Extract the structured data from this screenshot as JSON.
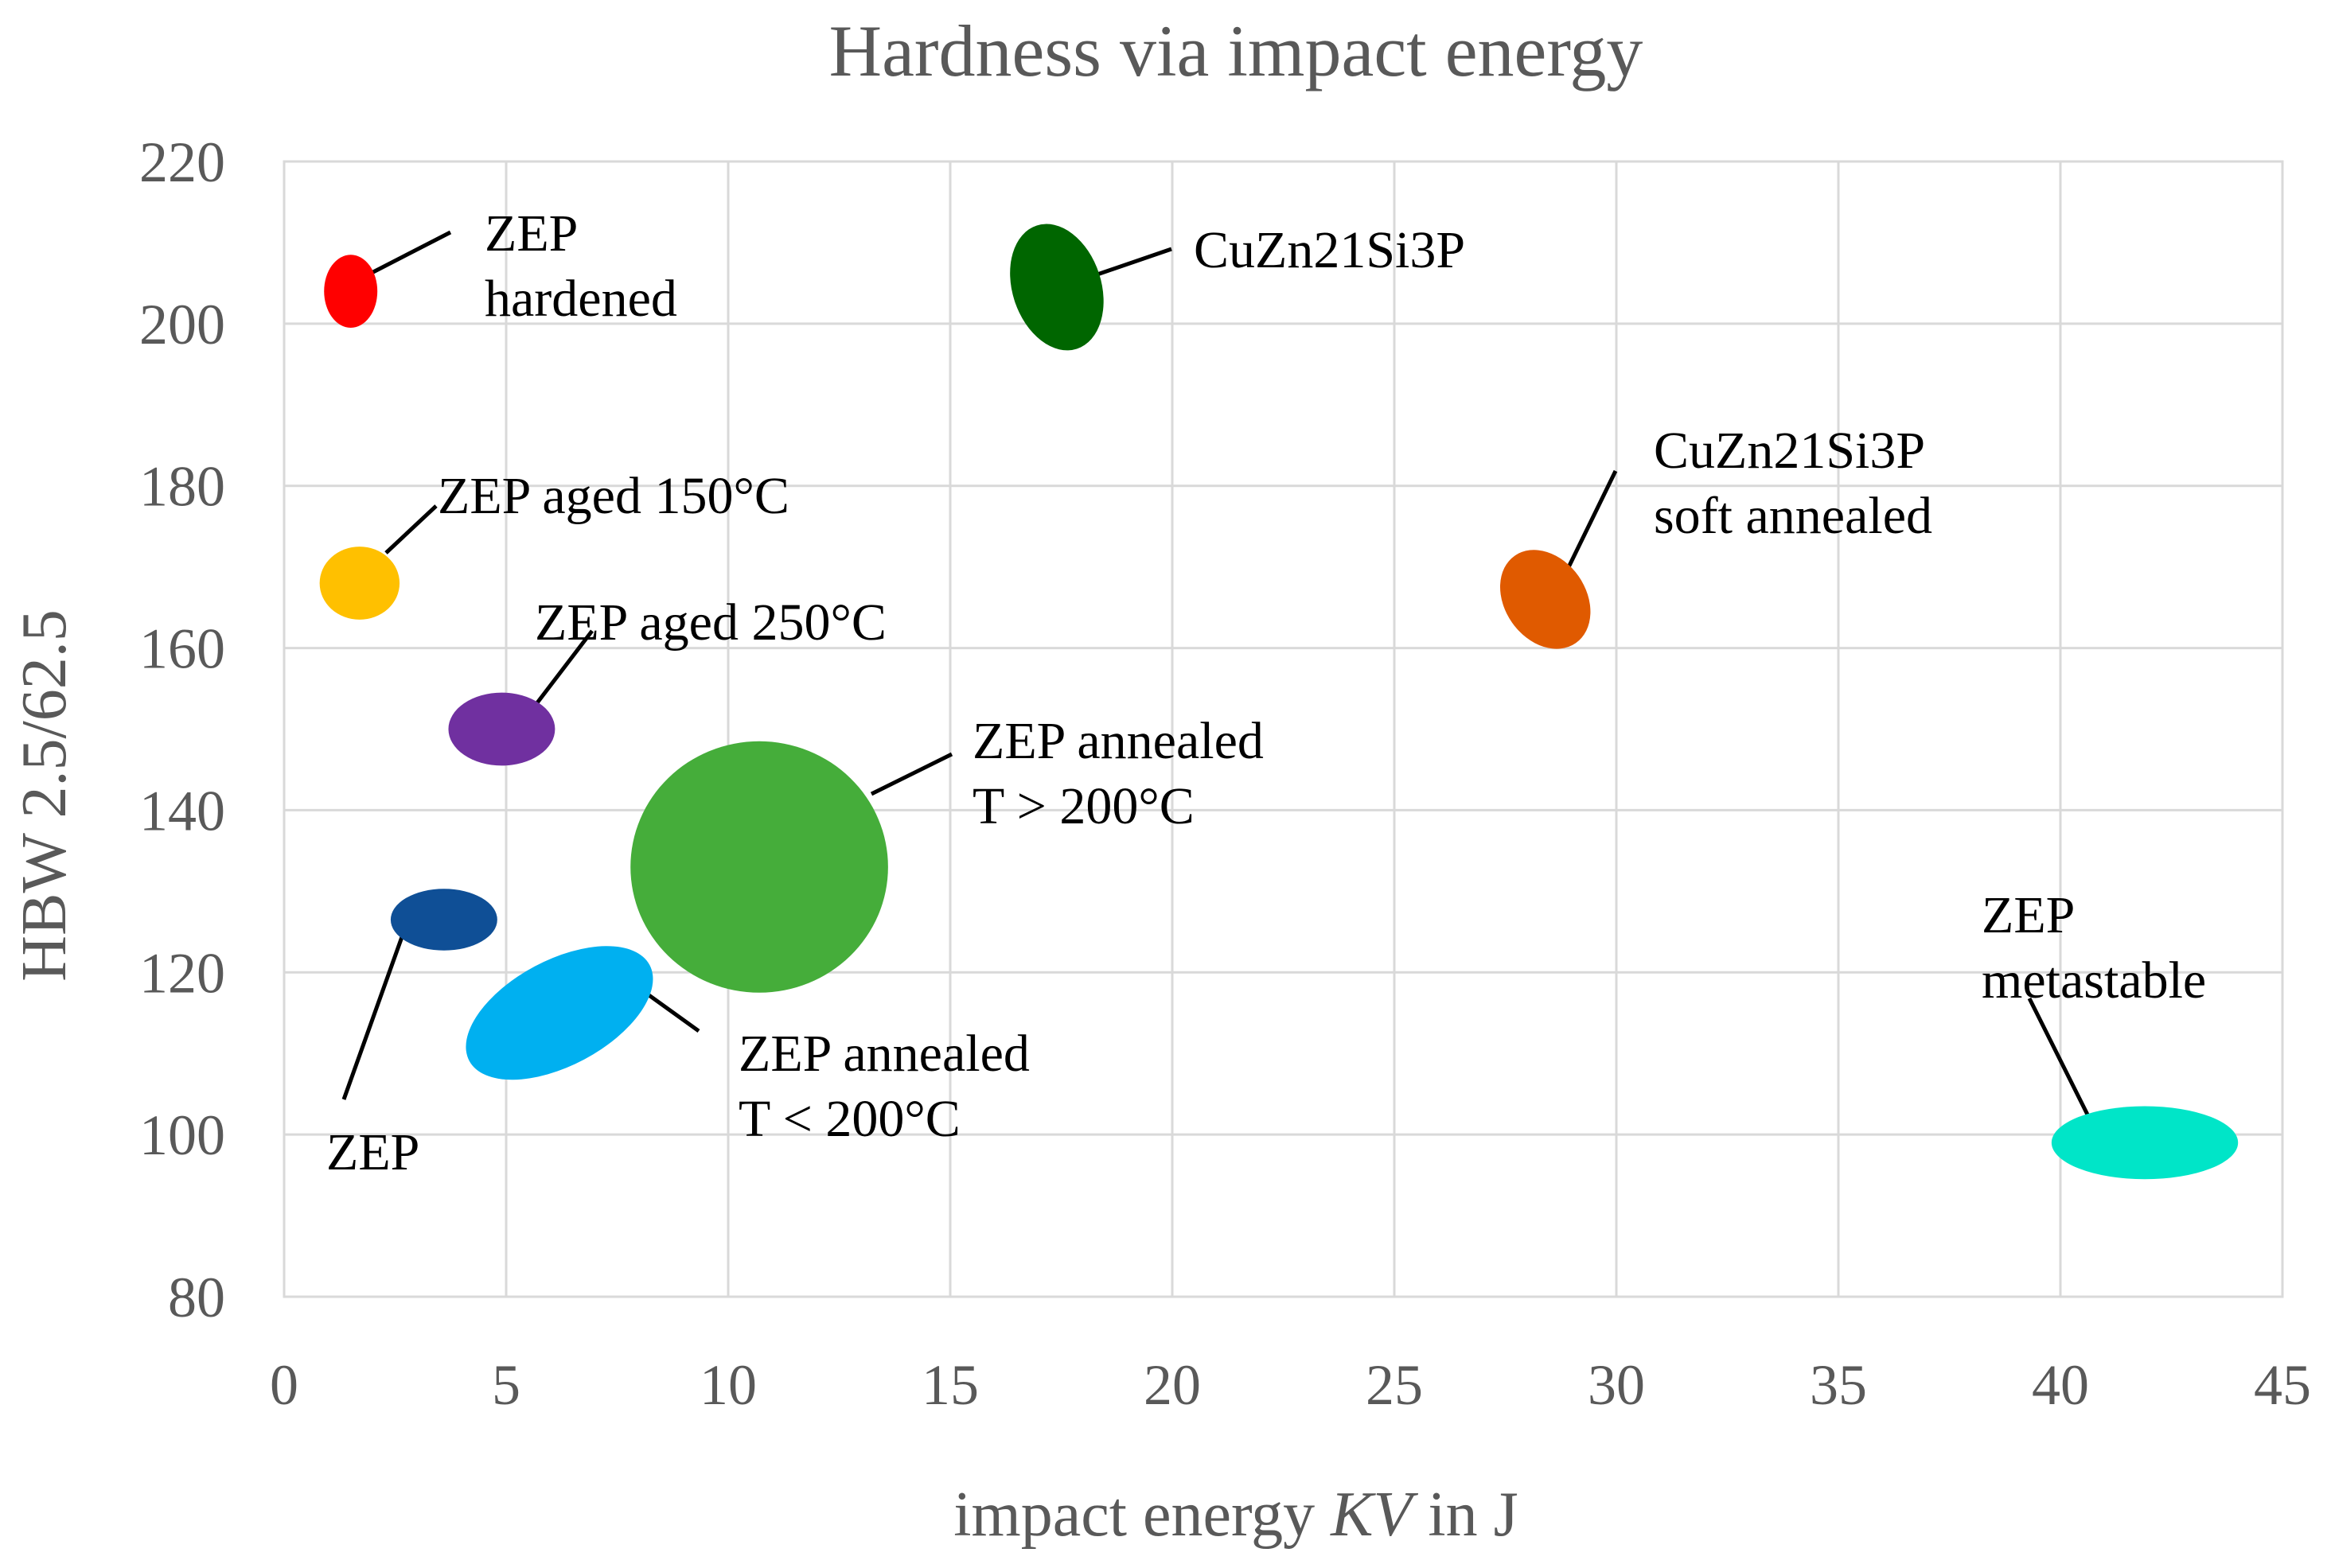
{
  "chart_data": {
    "type": "scatter",
    "title": "Hardness via impact energy",
    "xlabel": "impact energy KV in J",
    "xlabel_parts": [
      "impact energy ",
      "KV",
      " in J"
    ],
    "ylabel": "HBW 2.5/62.5",
    "xlim": [
      0,
      45
    ],
    "ylim": [
      80,
      220
    ],
    "xticks": [
      0,
      5,
      10,
      15,
      20,
      25,
      30,
      35,
      40,
      45
    ],
    "yticks": [
      80,
      100,
      120,
      140,
      160,
      180,
      200,
      220
    ],
    "grid": true,
    "series": [
      {
        "name": "ZEP hardened",
        "label_lines": [
          "ZEP",
          "hardened"
        ],
        "x": 1.5,
        "y": 204,
        "rx": 0.6,
        "ry": 4.5,
        "rotate": 0,
        "color": "#ff0000"
      },
      {
        "name": "CuZn21Si3P",
        "label_lines": [
          "CuZn21Si3P"
        ],
        "x": 17.4,
        "y": 204.5,
        "rx": 1.0,
        "ry": 8.0,
        "rotate": -18,
        "color": "#006600"
      },
      {
        "name": "ZEP aged 150°C",
        "label_lines": [
          "ZEP aged 150°C"
        ],
        "x": 1.7,
        "y": 168,
        "rx": 0.9,
        "ry": 4.5,
        "rotate": 0,
        "color": "#ffc000"
      },
      {
        "name": "CuZn21Si3P soft annealed",
        "label_lines": [
          "CuZn21Si3P",
          "soft annealed"
        ],
        "x": 28.4,
        "y": 166,
        "rx": 1.2,
        "ry": 5.0,
        "rotate": 55,
        "color": "#e05a00"
      },
      {
        "name": "ZEP aged 250°C",
        "label_lines": [
          "ZEP aged 250°C"
        ],
        "x": 4.9,
        "y": 150,
        "rx": 1.2,
        "ry": 4.5,
        "rotate": 0,
        "color": "#7030a0"
      },
      {
        "name": "ZEP annealed T > 200°C",
        "label_lines": [
          "ZEP annealed",
          "T > 200°C"
        ],
        "x": 10.7,
        "y": 133,
        "rx": 2.9,
        "ry": 15.5,
        "rotate": 0,
        "color": "#45ad3a"
      },
      {
        "name": "ZEP",
        "label_lines": [
          "ZEP"
        ],
        "x": 3.6,
        "y": 126.5,
        "rx": 1.2,
        "ry": 3.8,
        "rotate": 0,
        "color": "#0f4f96"
      },
      {
        "name": "ZEP annealed T < 200°C",
        "label_lines": [
          "ZEP annealed",
          "T < 200°C"
        ],
        "x": 6.2,
        "y": 115,
        "rx": 2.3,
        "ry": 6.5,
        "rotate": -28,
        "color": "#00b0f0"
      },
      {
        "name": "ZEP metastable",
        "label_lines": [
          "ZEP",
          "metastable"
        ],
        "x": 41.9,
        "y": 99,
        "rx": 2.1,
        "ry": 4.5,
        "rotate": 0,
        "color": "#00e5c8"
      }
    ]
  }
}
